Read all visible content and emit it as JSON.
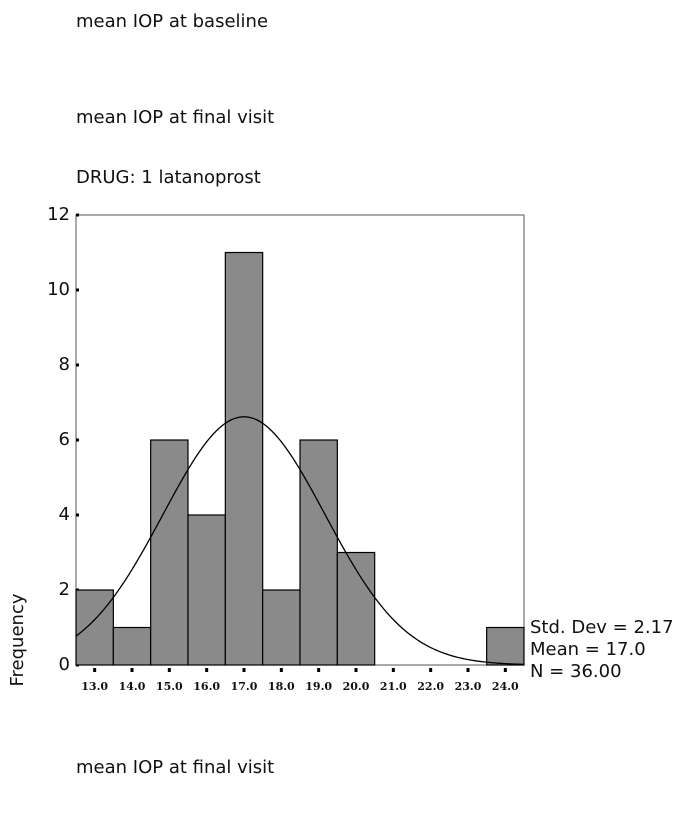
{
  "header": [
    "mean IOP at baseline",
    "mean IOP at final visit",
    "DRUG:  1   latanoprost"
  ],
  "chart_data": {
    "type": "histogram",
    "bins": [
      12.5,
      13.5,
      14.5,
      15.5,
      16.5,
      17.5,
      18.5,
      19.5,
      20.5,
      21.5,
      22.5,
      23.5,
      24.5
    ],
    "values": [
      2,
      1,
      6,
      4,
      11,
      2,
      6,
      3,
      0,
      0,
      0,
      1
    ],
    "color": "#8a8a8a",
    "xlim": [
      12.5,
      24.5
    ],
    "xticks": [
      {
        "value": 13,
        "label": "13.0"
      },
      {
        "value": 14,
        "label": "14.0"
      },
      {
        "value": 15,
        "label": "15.0"
      },
      {
        "value": 16,
        "label": "16.0"
      },
      {
        "value": 17,
        "label": "17.0"
      },
      {
        "value": 18,
        "label": "18.0"
      },
      {
        "value": 19,
        "label": "19.0"
      },
      {
        "value": 20,
        "label": "20.0"
      },
      {
        "value": 21,
        "label": "21.0"
      },
      {
        "value": 22,
        "label": "22.0"
      },
      {
        "value": 23,
        "label": "23.0"
      },
      {
        "value": 24,
        "label": "24.0"
      }
    ],
    "ylim": [
      0,
      12
    ],
    "yticks": [
      0,
      2,
      4,
      6,
      8,
      10,
      12
    ],
    "ylabel": "Frequency",
    "xlabel": "mean IOP at final visit",
    "normal_curve": {
      "sd": {
        "value": 2.17,
        "label": "Std. Dev = 2.17"
      },
      "mean": {
        "value": 17.0,
        "label": "Mean = 17.0"
      },
      "n": {
        "value": 36,
        "label": "N = 36.00"
      }
    }
  }
}
